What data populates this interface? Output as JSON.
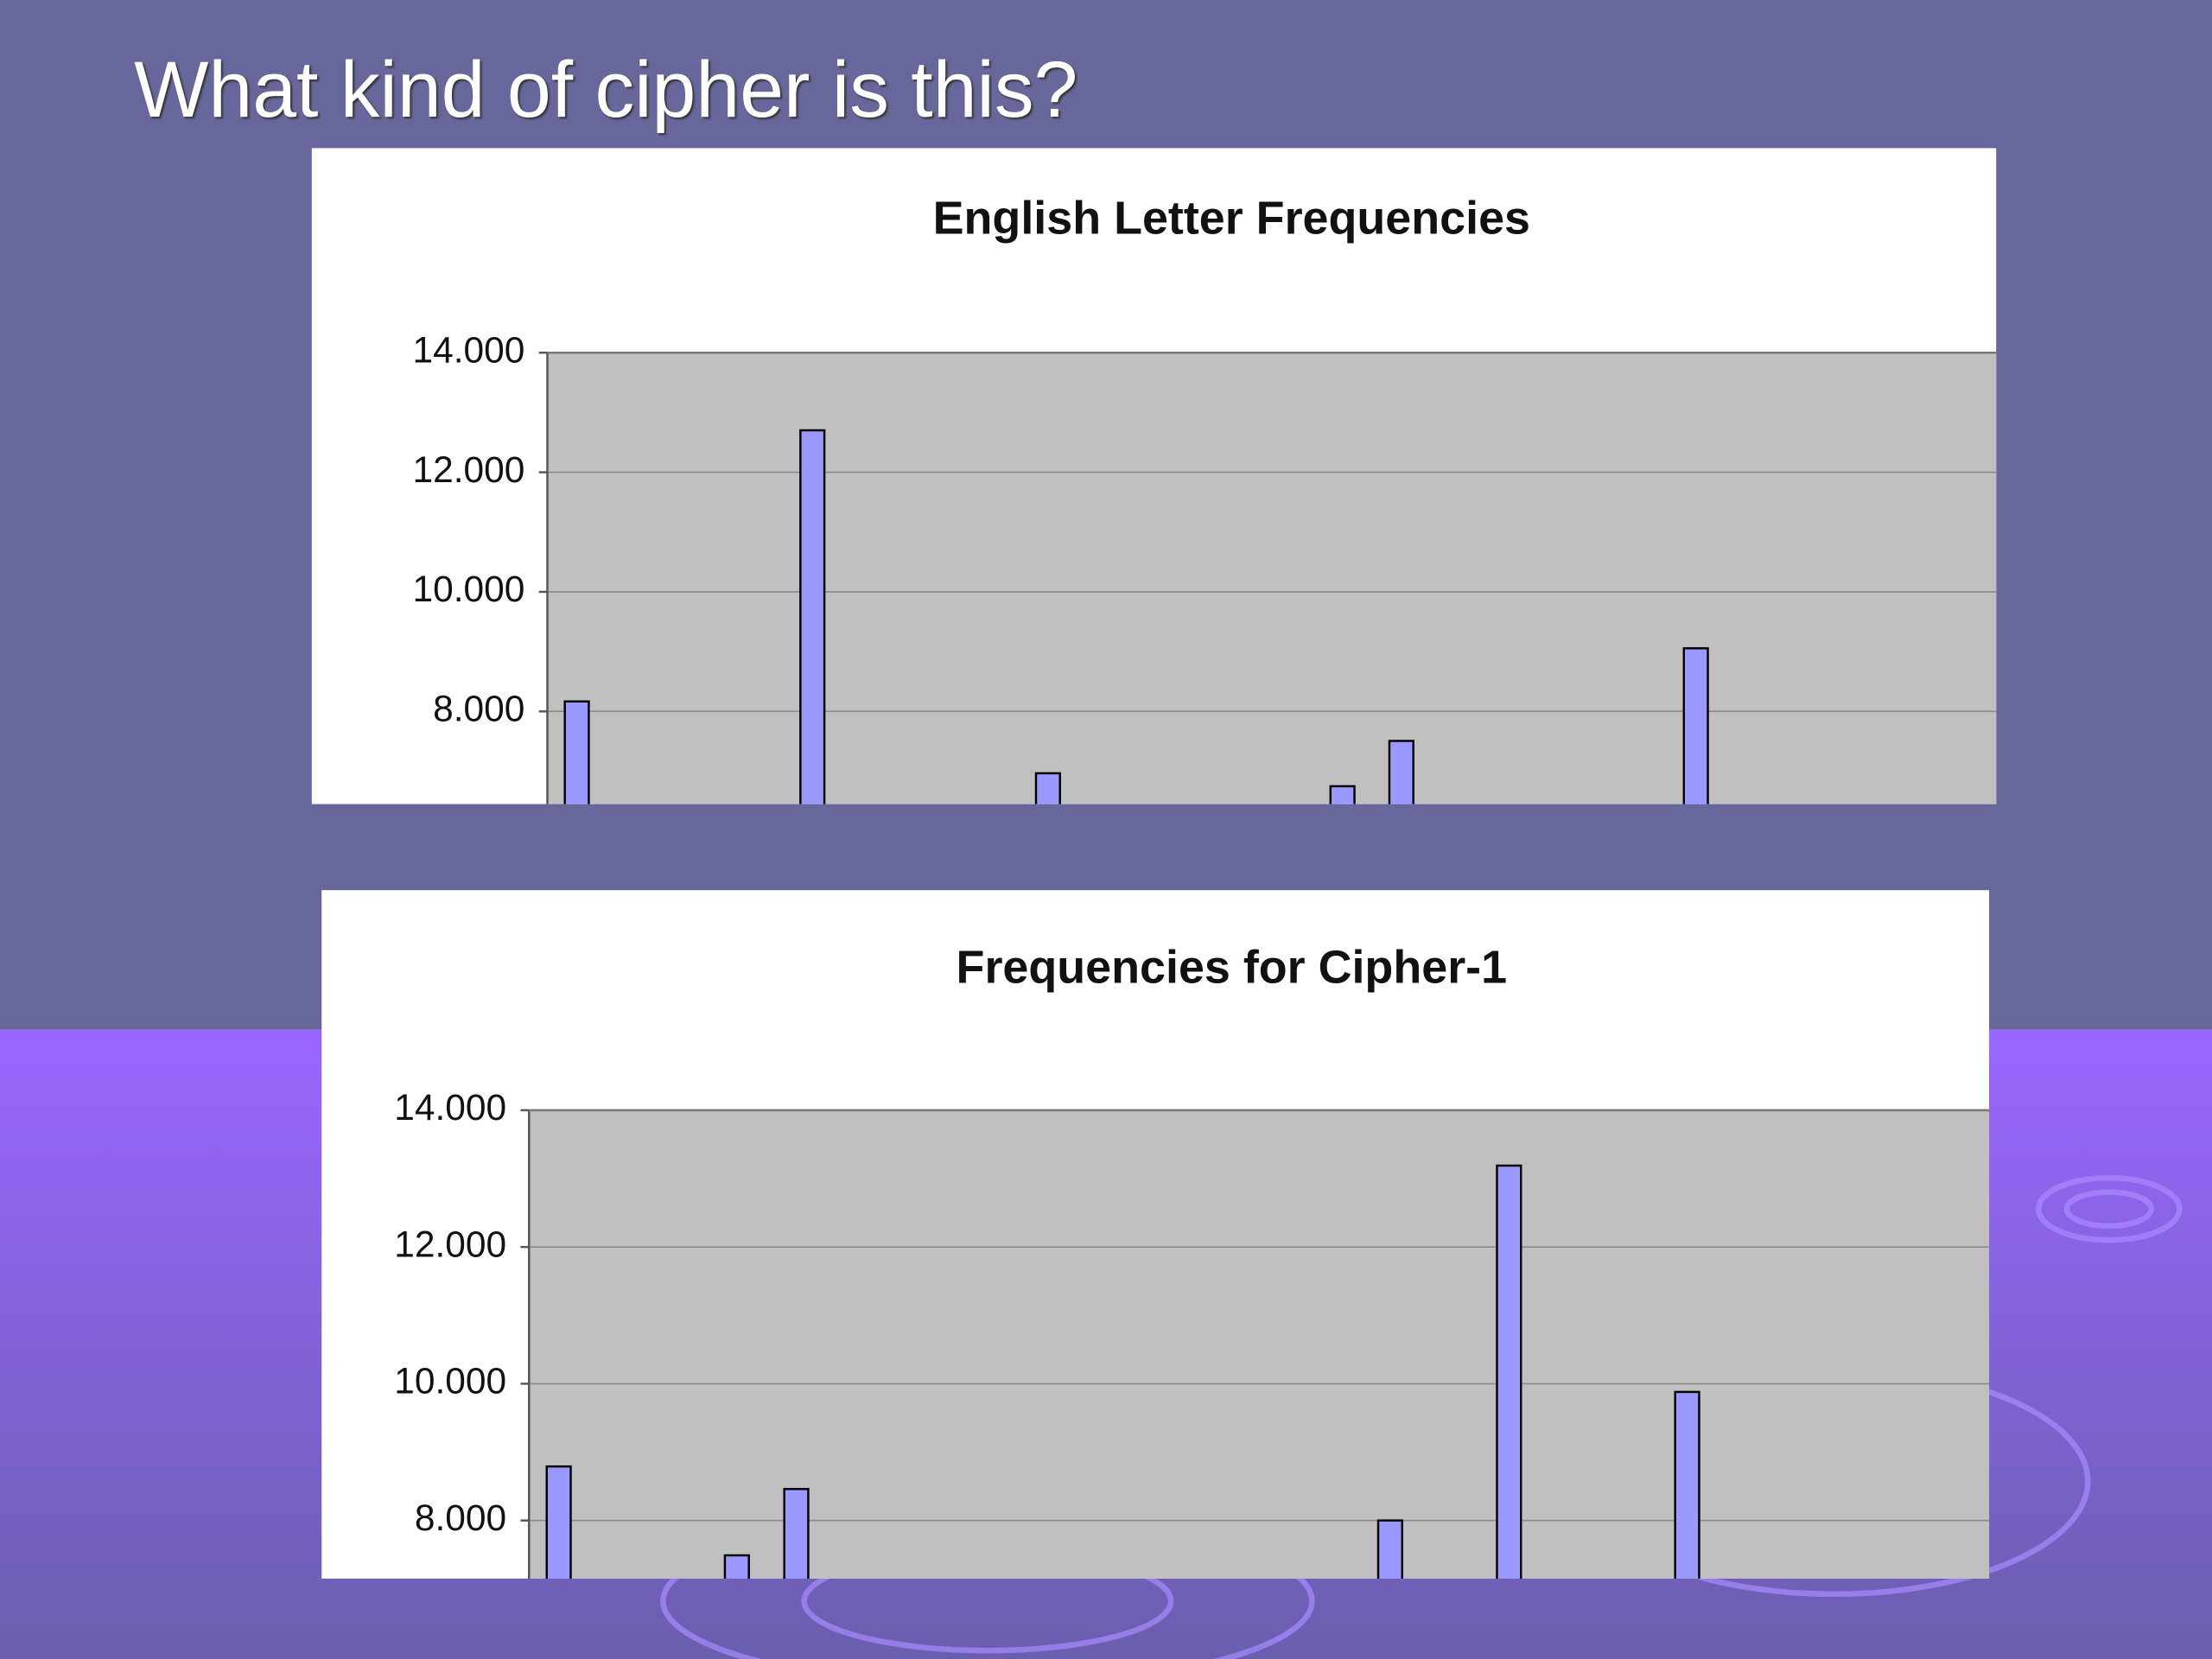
{
  "slide_title": "What kind of cipher is this?",
  "chart_data": [
    {
      "type": "bar",
      "title": "English Letter Frequencies",
      "categories": [
        null,
        null,
        null,
        null,
        null,
        null,
        null,
        null,
        null,
        null,
        null,
        null,
        null,
        null,
        null,
        null,
        null,
        null,
        null,
        null,
        null,
        null,
        null,
        null,
        null,
        null
      ],
      "values": [
        8.167,
        null,
        null,
        null,
        12.702,
        null,
        null,
        null,
        6.966,
        null,
        null,
        null,
        null,
        6.749,
        7.507,
        null,
        null,
        null,
        null,
        9.056,
        null,
        null,
        null,
        null,
        null,
        null
      ],
      "color": "#9999ff",
      "ylim": [
        6.45,
        14
      ],
      "yticks": [
        {
          "value": 8,
          "label": "8.000"
        },
        {
          "value": 10,
          "label": "10.000"
        },
        {
          "value": 12,
          "label": "12.000"
        },
        {
          "value": 14,
          "label": "14.000"
        }
      ],
      "grid": true
    },
    {
      "type": "bar",
      "title": "Frequencies for Cipher-1",
      "categories": [
        null,
        null,
        null,
        null,
        null,
        null,
        null,
        null,
        null,
        null,
        null,
        null,
        null,
        null,
        null,
        null,
        null,
        null,
        null,
        null,
        null,
        null,
        null,
        null,
        null,
        null
      ],
      "values": [
        8.79,
        null,
        null,
        7.49,
        8.46,
        null,
        null,
        null,
        null,
        null,
        null,
        null,
        null,
        null,
        8.0,
        null,
        13.19,
        null,
        null,
        9.88,
        null,
        null,
        null,
        null,
        null,
        null
      ],
      "color": "#9999ff",
      "ylim": [
        7.15,
        14
      ],
      "yticks": [
        {
          "value": 8,
          "label": "8.000"
        },
        {
          "value": 10,
          "label": "10.000"
        },
        {
          "value": 12,
          "label": "12.000"
        },
        {
          "value": 14,
          "label": "14.000"
        }
      ],
      "grid": true
    }
  ]
}
